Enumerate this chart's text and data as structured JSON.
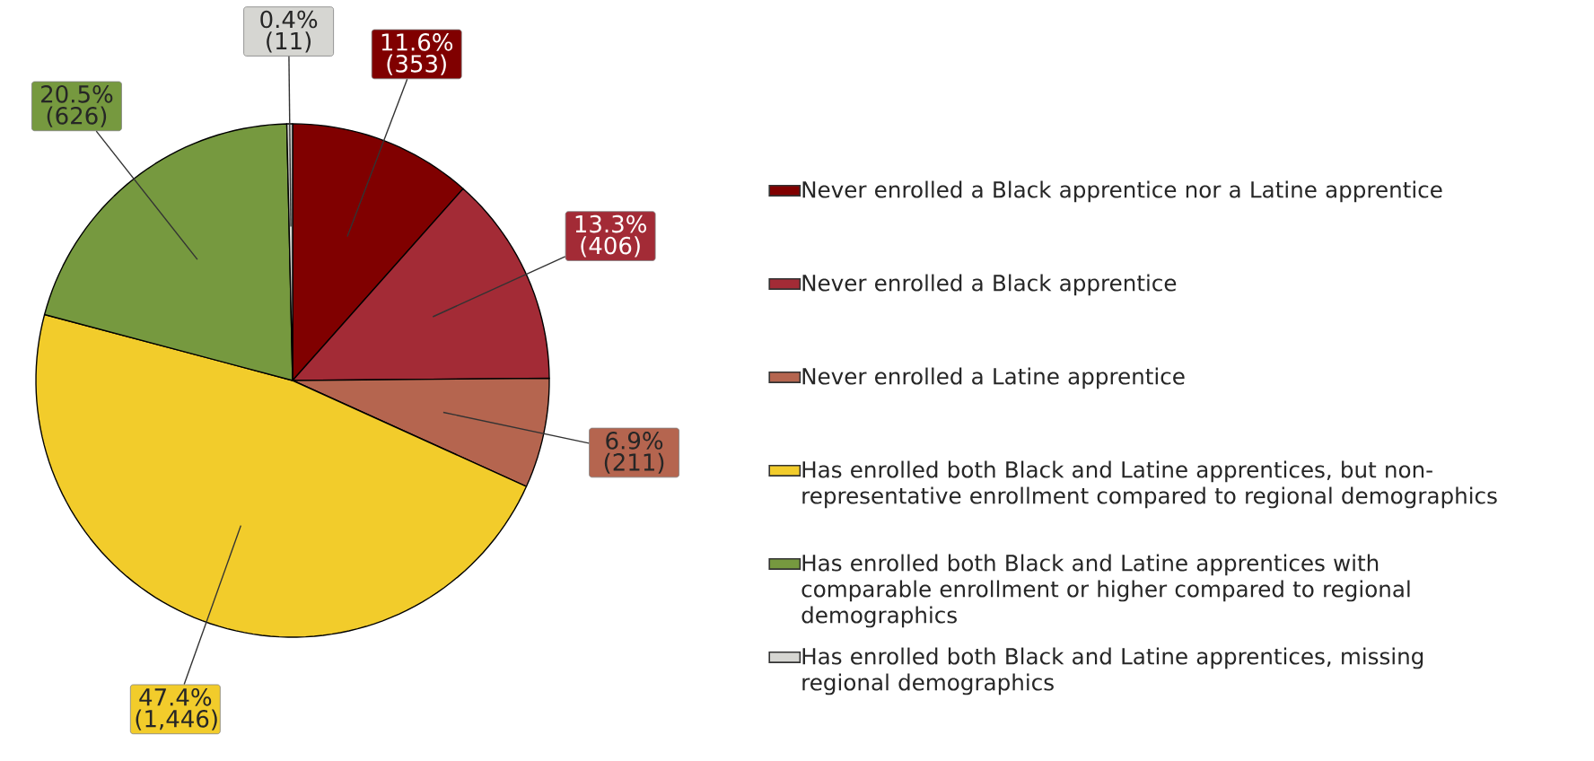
{
  "chart_data": {
    "type": "pie",
    "categories": [
      "Never enrolled a Black apprentice nor a Latine apprentice",
      "Never enrolled a Black apprentice",
      "Never enrolled a Latine apprentice",
      "Has enrolled both Black and Latine apprentices, but non-representative enrollment compared to regional demographics",
      "Has enrolled both Black and Latine apprentices with comparable enrollment or higher compared to regional demographics",
      "Has enrolled both Black and Latine apprentices, missing regional demographics"
    ],
    "values": [
      353,
      406,
      211,
      1446,
      626,
      11
    ],
    "value_labels": [
      "11.6% (353)",
      "13.3% (406)",
      "6.9% (211)",
      "47.4% (1,446)",
      "20.5% (626)",
      "0.4% (11)"
    ],
    "colors": [
      "#800000",
      "#a32b36",
      "#b5654f",
      "#f2cc2b",
      "#76993f",
      "#d6d6d2"
    ],
    "legend": "right"
  }
}
